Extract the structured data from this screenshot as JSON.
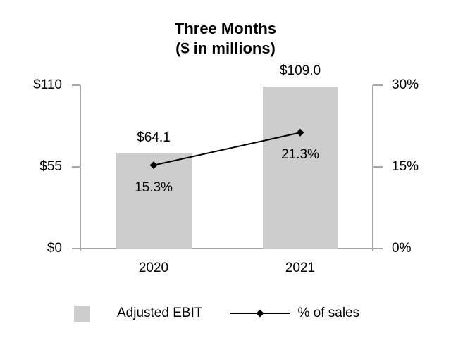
{
  "chart_data": {
    "type": "combo-bar-line",
    "title": "Three Months",
    "subtitle": "($ in millions)",
    "categories": [
      "2020",
      "2021"
    ],
    "series": [
      {
        "name": "Adjusted EBIT",
        "type": "bar",
        "axis": "left",
        "values": [
          64.1,
          109.0
        ],
        "labels": [
          "$64.1",
          "$109.0"
        ],
        "color": "#cdcdcd"
      },
      {
        "name": "% of sales",
        "type": "line",
        "axis": "right",
        "marker": "diamond",
        "values": [
          15.3,
          21.3
        ],
        "labels": [
          "15.3%",
          "21.3%"
        ],
        "color": "#000000"
      }
    ],
    "left_axis": {
      "tick_labels": [
        "$110",
        "$55",
        "$0"
      ],
      "range": [
        0,
        110
      ]
    },
    "right_axis": {
      "tick_labels": [
        "30%",
        "15%",
        "0%"
      ],
      "range": [
        0,
        30
      ]
    },
    "axis_color": "#a6a6a6",
    "background": "#ffffff",
    "legend": {
      "position": "bottom",
      "items": [
        {
          "label": "Adjusted EBIT",
          "swatch": "bar"
        },
        {
          "label": "% of sales",
          "swatch": "line-diamond"
        }
      ]
    }
  }
}
